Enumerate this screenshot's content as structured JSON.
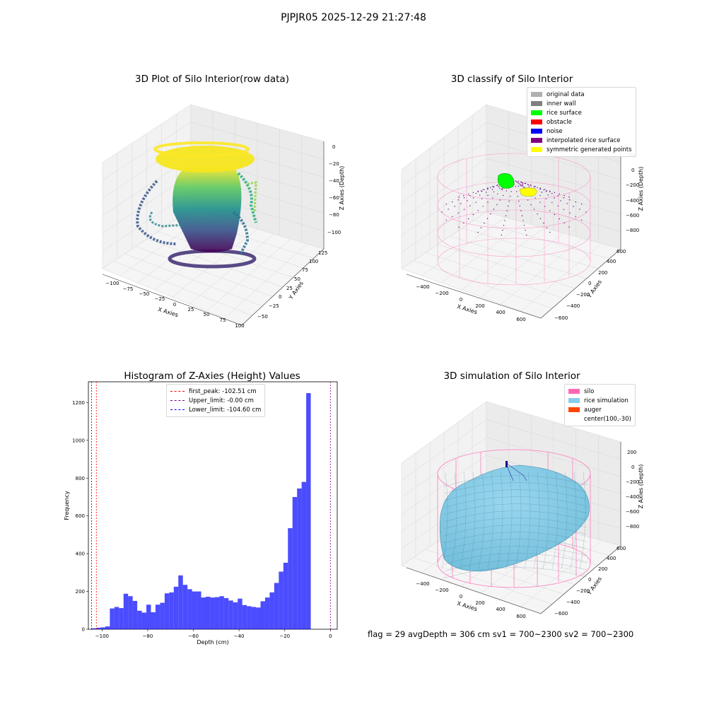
{
  "suptitle": "PJPJR05 2025-12-29 21:27:48",
  "footer": "flag = 29   avgDepth = 306 cm   sv1 = 700~2300   sv2 = 700~2300",
  "panels": {
    "raw": {
      "title": "3D Plot of Silo Interior(row data)",
      "xlabel": "X Axies",
      "ylabel": "Y Axies",
      "zlabel": "Z Axies (Depth)",
      "xticks": [
        "−100",
        "−75",
        "−50",
        "−25",
        "0",
        "25",
        "50",
        "75",
        "100"
      ],
      "yticks": [
        "−50",
        "−25",
        "0",
        "25",
        "50",
        "75",
        "100",
        "125"
      ],
      "zticks": [
        "0",
        "−20",
        "−40",
        "−60",
        "−80",
        "−100"
      ]
    },
    "classify": {
      "title": "3D classify of Silo Interior",
      "xlabel": "X Axies",
      "ylabel": "Y Axies",
      "zlabel": "Z Axies (Depth)",
      "xticks": [
        "−400",
        "−200",
        "0",
        "200",
        "400",
        "600"
      ],
      "yticks": [
        "−600",
        "−400",
        "−200",
        "0",
        "200",
        "400",
        "600"
      ],
      "zticks": [
        "200",
        "0",
        "−200",
        "−400",
        "−600",
        "−800"
      ],
      "legend": [
        {
          "label": "original data",
          "color": "#b0b0b0"
        },
        {
          "label": "inner wall",
          "color": "#808080"
        },
        {
          "label": "rice surface",
          "color": "#00ff00"
        },
        {
          "label": "obstacle",
          "color": "#ff0000"
        },
        {
          "label": "noise",
          "color": "#0000ff"
        },
        {
          "label": "interpolated rice surface",
          "color": "#800080"
        },
        {
          "label": "symmetric generated points",
          "color": "#ffff00"
        }
      ]
    },
    "simulation": {
      "title": "3D simulation of Silo Interior",
      "xlabel": "X Axies",
      "ylabel": "Y Axies",
      "zlabel": "Z Axies (Depth)",
      "xticks": [
        "−400",
        "−200",
        "0",
        "200",
        "400",
        "600"
      ],
      "yticks": [
        "−600",
        "−400",
        "−200",
        "0",
        "200",
        "400",
        "600"
      ],
      "zticks": [
        "200",
        "0",
        "−200",
        "−400",
        "−600",
        "−800"
      ],
      "legend": [
        {
          "label": "silo",
          "color": "#ff69b4"
        },
        {
          "label": "rice simulation",
          "color": "#87ceeb"
        },
        {
          "label": "auger",
          "color": "#ff4500"
        },
        {
          "label": "center(100,-30)",
          "color": ""
        }
      ]
    }
  },
  "chart_data": [
    {
      "type": "bar",
      "title": "Histogram of Z-Axies (Height) Values",
      "xlabel": "Depth (cm)",
      "ylabel": "Frequency",
      "xlim": [
        -106,
        3
      ],
      "ylim": [
        0,
        1310
      ],
      "xticks": [
        -100,
        -80,
        -60,
        -40,
        -20,
        0
      ],
      "yticks": [
        0,
        200,
        400,
        600,
        800,
        1000,
        1200
      ],
      "bar_color": "#0000ff",
      "bin_width": 2.0,
      "bin_start": -104.6,
      "values": [
        5,
        8,
        10,
        15,
        110,
        118,
        112,
        188,
        175,
        150,
        98,
        88,
        130,
        90,
        130,
        140,
        190,
        195,
        225,
        285,
        235,
        212,
        200,
        200,
        168,
        172,
        168,
        170,
        175,
        165,
        152,
        142,
        162,
        128,
        122,
        118,
        115,
        148,
        168,
        195,
        245,
        305,
        352,
        535,
        700,
        745,
        780,
        1250
      ],
      "vlines": [
        {
          "label": "first_peak: -102.51 cm",
          "x": -102.51,
          "color": "#ff0000"
        },
        {
          "label": "Upper_limit: -0.00 cm",
          "x": 0.0,
          "color": "#800080"
        },
        {
          "label": "Lower_limit: -104.60 cm",
          "x": -104.6,
          "color": "#0000ff"
        }
      ]
    }
  ]
}
